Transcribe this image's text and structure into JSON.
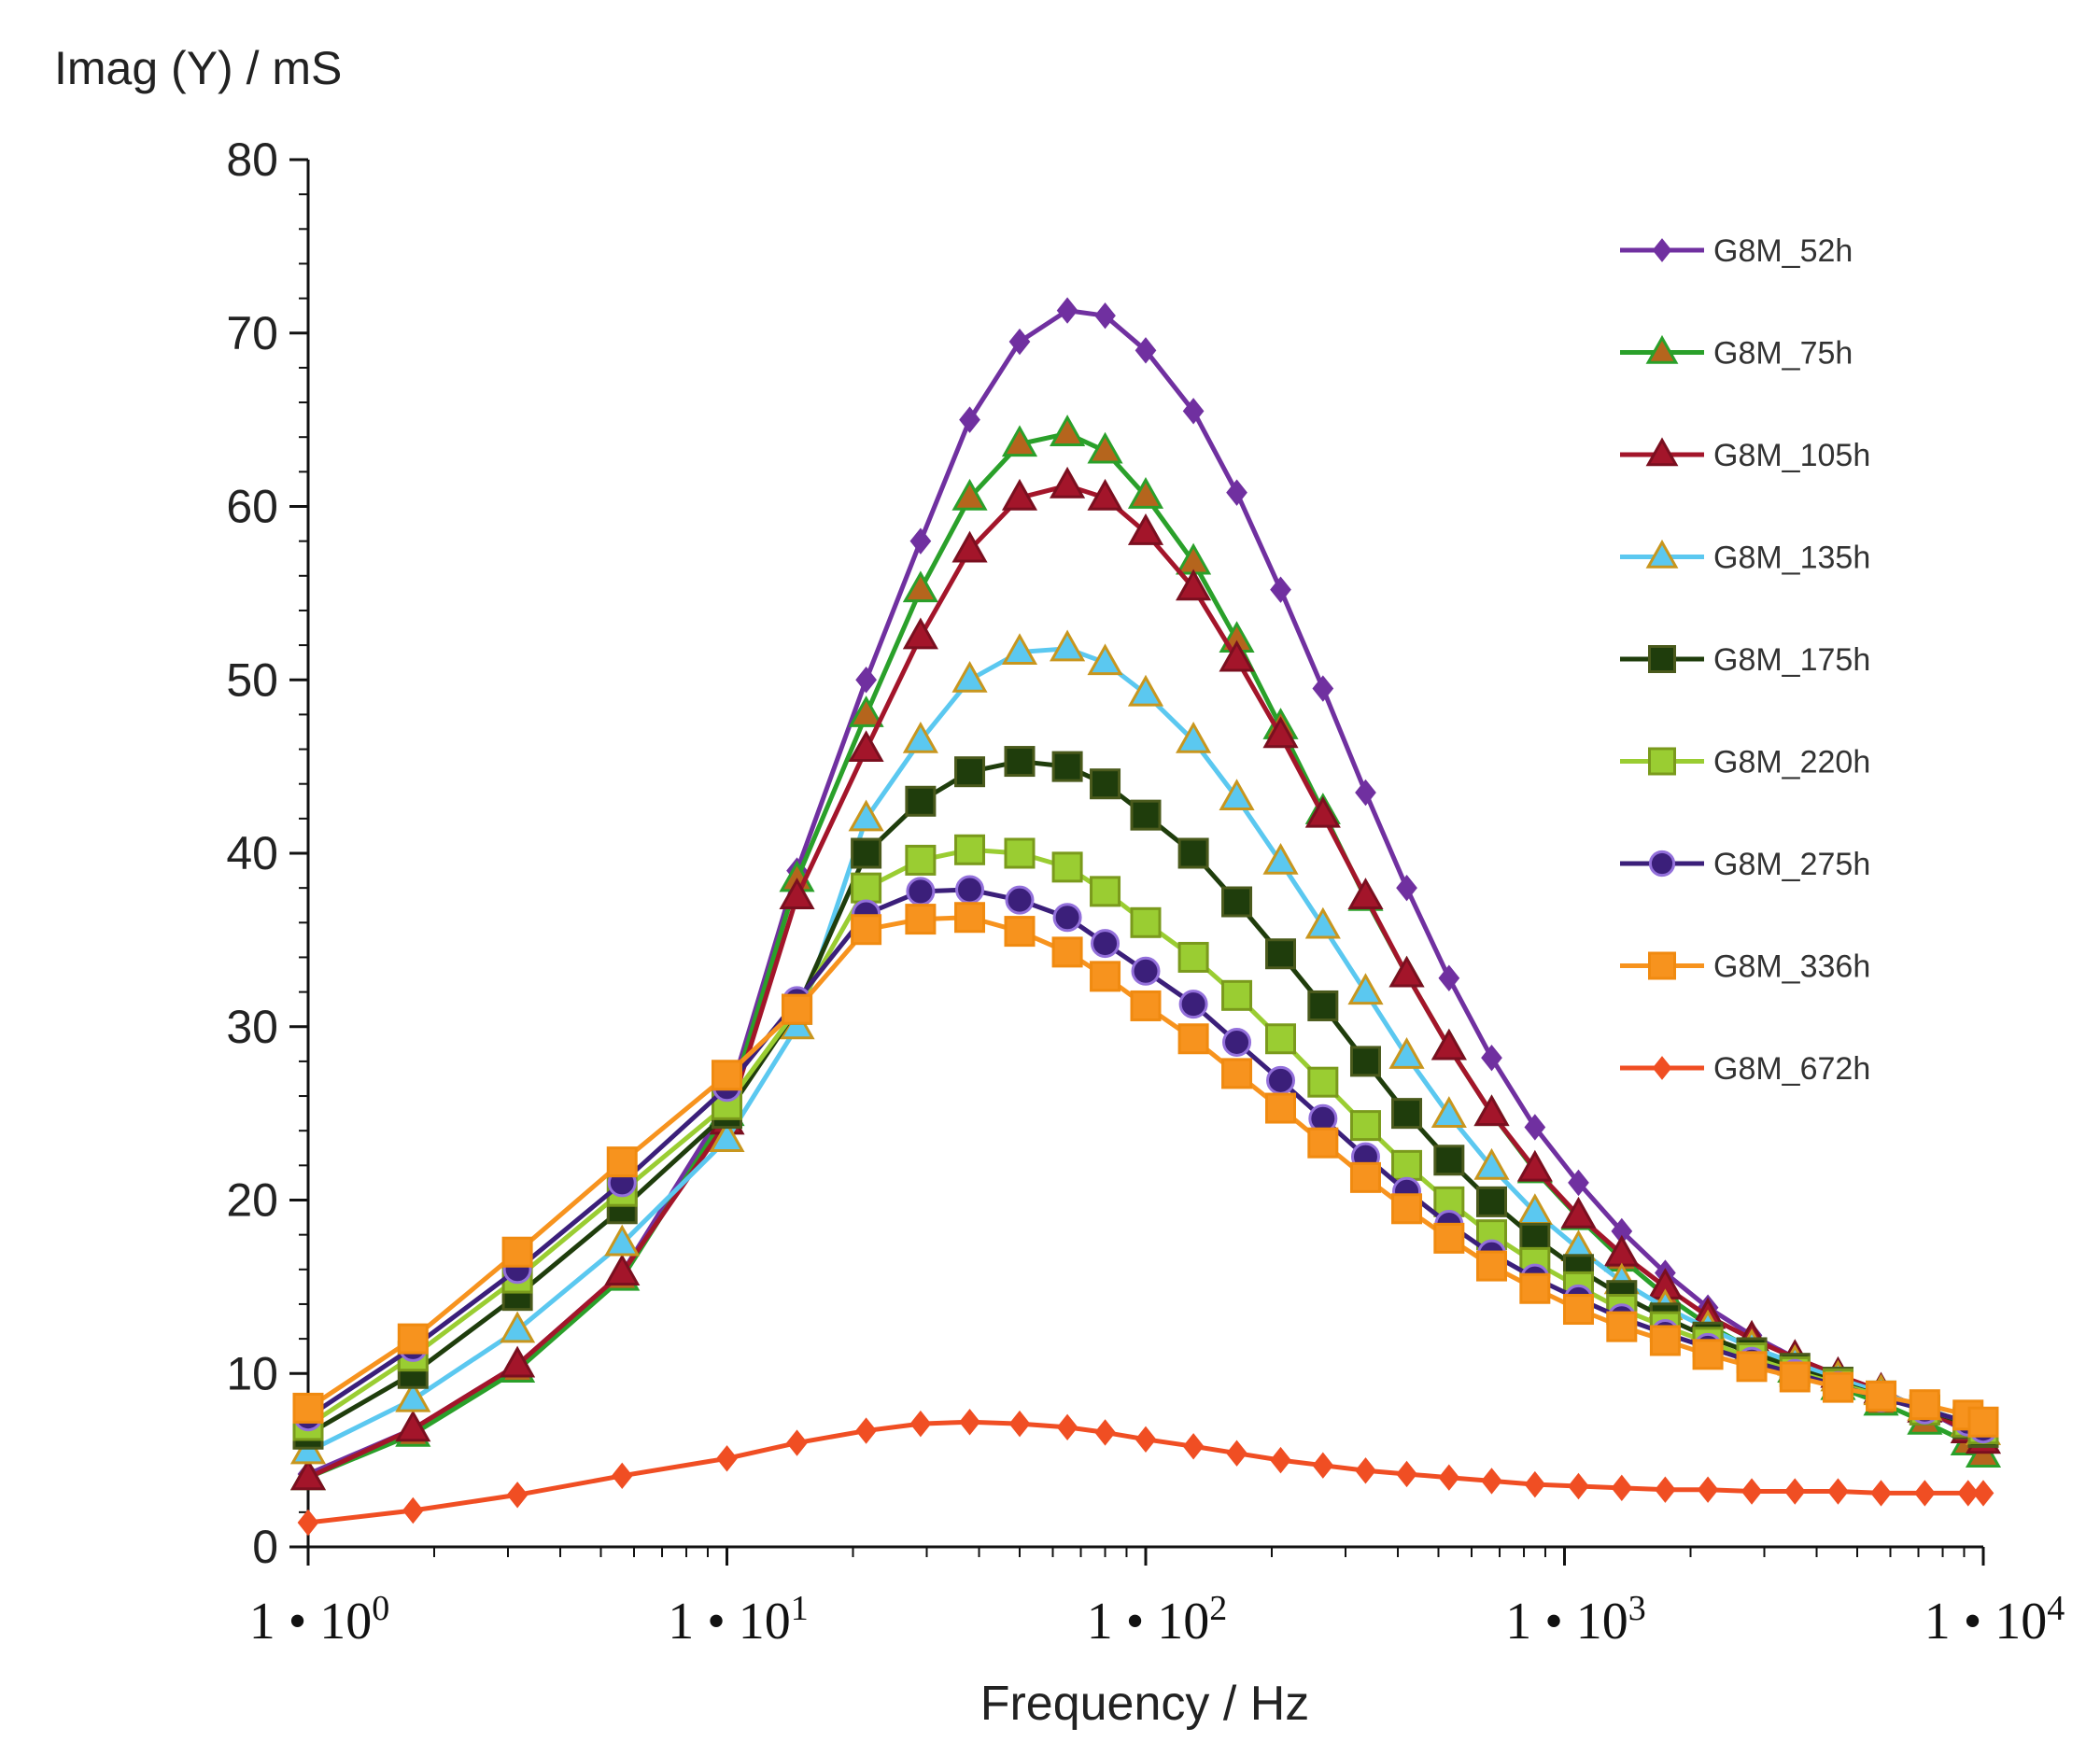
{
  "chart_data": {
    "type": "line",
    "ylabel": "Imag (Y) / mS",
    "xlabel": "Frequency / Hz",
    "x_scale": "log",
    "xlim": [
      1,
      10000
    ],
    "ylim": [
      0,
      80
    ],
    "y_ticks": [
      0,
      10,
      20,
      30,
      40,
      50,
      60,
      70,
      80
    ],
    "y_tick_labels": [
      "0",
      "10",
      "20",
      "30",
      "40",
      "50",
      "60",
      "70",
      "80"
    ],
    "x_ticks": [
      1,
      10,
      100,
      1000,
      10000
    ],
    "x_tick_labels": [
      {
        "base": "1 • 10",
        "exp": "0"
      },
      {
        "base": "1 • 10",
        "exp": "1"
      },
      {
        "base": "1 • 10",
        "exp": "2"
      },
      {
        "base": "1 • 10",
        "exp": "3"
      },
      {
        "base": "1 • 10",
        "exp": "4"
      }
    ],
    "legend_position": "top-right",
    "x": [
      1.0,
      1.78,
      3.16,
      5.62,
      10.0,
      14.7,
      21.5,
      31.6,
      46.4,
      68.1,
      100,
      147,
      215,
      316,
      464,
      681,
      1000,
      1470,
      2150,
      3160,
      4640,
      6810,
      10000
    ],
    "series": [
      {
        "name": "G8M_52h",
        "color": "#7030a0",
        "marker": "diamond",
        "marker_fill": "#7030a0",
        "x": [
          1.0,
          1.78,
          3.16,
          5.62,
          10.0,
          14.7,
          21.5,
          29.0,
          38.0,
          50.0,
          65.0,
          80.0,
          100,
          130,
          165,
          210,
          265,
          335,
          420,
          530,
          670,
          850,
          1080,
          1370,
          1740,
          2200,
          2800,
          3550,
          4500,
          5700,
          7250,
          9200,
          10000
        ],
        "values": [
          4.2,
          6.8,
          10.5,
          15.8,
          25.5,
          39.0,
          50.0,
          58.0,
          65.0,
          69.5,
          71.3,
          71.0,
          69.0,
          65.5,
          60.8,
          55.2,
          49.5,
          43.5,
          38.0,
          32.8,
          28.2,
          24.2,
          21.0,
          18.2,
          15.8,
          13.8,
          12.2,
          10.9,
          9.9,
          8.9,
          7.9,
          6.6,
          6.0
        ]
      },
      {
        "name": "G8M_75h",
        "color": "#2aa02a",
        "marker": "triangle",
        "marker_fill": "#b5651d",
        "x": [
          1.0,
          1.78,
          3.16,
          5.62,
          10.0,
          14.7,
          21.5,
          29.0,
          38.0,
          50.0,
          65.0,
          80.0,
          100,
          130,
          165,
          210,
          265,
          335,
          420,
          530,
          670,
          850,
          1080,
          1370,
          1740,
          2200,
          2800,
          3550,
          4500,
          5700,
          7250,
          9200,
          10000
        ],
        "values": [
          4.0,
          6.5,
          10.2,
          15.5,
          25.0,
          38.5,
          48.0,
          55.2,
          60.5,
          63.6,
          64.2,
          63.2,
          60.6,
          56.8,
          52.3,
          47.3,
          42.4,
          37.4,
          33.0,
          28.8,
          25.0,
          21.7,
          19.0,
          16.6,
          14.5,
          12.8,
          11.4,
          10.2,
          9.2,
          8.3,
          7.2,
          6.0,
          5.3
        ]
      },
      {
        "name": "G8M_105h",
        "color": "#a3152a",
        "marker": "triangle",
        "marker_fill": "#a3152a",
        "x": [
          1.0,
          1.78,
          3.16,
          5.62,
          10.0,
          14.7,
          21.5,
          29.0,
          38.0,
          50.0,
          65.0,
          80.0,
          100,
          130,
          165,
          210,
          265,
          335,
          420,
          530,
          670,
          850,
          1080,
          1370,
          1740,
          2200,
          2800,
          3550,
          4500,
          5700,
          7250,
          9200,
          10000
        ],
        "values": [
          4.0,
          6.8,
          10.5,
          15.8,
          24.5,
          37.5,
          46.0,
          52.5,
          57.5,
          60.5,
          61.2,
          60.5,
          58.5,
          55.3,
          51.2,
          46.8,
          42.2,
          37.5,
          33.0,
          28.8,
          25.0,
          21.8,
          19.1,
          16.9,
          15.0,
          13.3,
          12.0,
          10.9,
          9.9,
          9.0,
          7.9,
          6.7,
          6.1
        ]
      },
      {
        "name": "G8M_135h",
        "color": "#5bc8f0",
        "marker": "triangle",
        "marker_fill": "#5bc8f0",
        "x": [
          1.0,
          1.78,
          3.16,
          5.62,
          10.0,
          14.7,
          21.5,
          29.0,
          38.0,
          50.0,
          65.0,
          80.0,
          100,
          130,
          165,
          210,
          265,
          335,
          420,
          530,
          670,
          850,
          1080,
          1370,
          1740,
          2200,
          2800,
          3550,
          4500,
          5700,
          7250,
          9200,
          10000
        ],
        "values": [
          5.5,
          8.5,
          12.5,
          17.5,
          23.5,
          30.0,
          42.0,
          46.5,
          50.0,
          51.6,
          51.8,
          51.0,
          49.2,
          46.5,
          43.2,
          39.5,
          35.8,
          32.0,
          28.3,
          24.9,
          21.9,
          19.3,
          17.2,
          15.3,
          13.8,
          12.6,
          11.5,
          10.6,
          9.7,
          8.9,
          8.0,
          7.1,
          6.6
        ]
      },
      {
        "name": "G8M_175h",
        "color": "#1f3d0c",
        "marker": "square",
        "marker_fill": "#1f3d0c",
        "x": [
          1.0,
          1.78,
          3.16,
          5.62,
          10.0,
          14.7,
          21.5,
          29.0,
          38.0,
          50.0,
          65.0,
          80.0,
          100,
          130,
          165,
          210,
          265,
          335,
          420,
          530,
          670,
          850,
          1080,
          1370,
          1740,
          2200,
          2800,
          3550,
          4500,
          5700,
          7250,
          9200,
          10000
        ],
        "values": [
          6.5,
          10.0,
          14.5,
          19.5,
          25.0,
          31.0,
          40.0,
          43.0,
          44.7,
          45.3,
          45.0,
          44.0,
          42.2,
          40.0,
          37.2,
          34.2,
          31.2,
          28.0,
          25.0,
          22.3,
          19.9,
          17.8,
          16.0,
          14.5,
          13.2,
          12.1,
          11.2,
          10.3,
          9.5,
          8.7,
          7.9,
          7.1,
          6.6
        ]
      },
      {
        "name": "G8M_220h",
        "color": "#9acd32",
        "marker": "square",
        "marker_fill": "#9acd32",
        "x": [
          1.0,
          1.78,
          3.16,
          5.62,
          10.0,
          14.7,
          21.5,
          29.0,
          38.0,
          50.0,
          65.0,
          80.0,
          100,
          130,
          165,
          210,
          265,
          335,
          420,
          530,
          670,
          850,
          1080,
          1370,
          1740,
          2200,
          2800,
          3550,
          4500,
          5700,
          7250,
          9200,
          10000
        ],
        "values": [
          7.0,
          11.0,
          15.5,
          20.5,
          25.5,
          31.0,
          38.0,
          39.6,
          40.2,
          40.0,
          39.2,
          37.8,
          36.0,
          34.0,
          31.8,
          29.3,
          26.8,
          24.3,
          22.0,
          19.9,
          18.0,
          16.4,
          15.0,
          13.7,
          12.7,
          11.8,
          10.9,
          10.1,
          9.4,
          8.7,
          7.9,
          7.2,
          6.8
        ]
      },
      {
        "name": "G8M_275h",
        "color": "#3b1f7a",
        "marker": "circle",
        "marker_fill": "#3b1f7a",
        "x": [
          1.0,
          1.78,
          3.16,
          5.62,
          10.0,
          14.7,
          21.5,
          29.0,
          38.0,
          50.0,
          65.0,
          80.0,
          100,
          130,
          165,
          210,
          265,
          335,
          420,
          530,
          670,
          850,
          1080,
          1370,
          1740,
          2200,
          2800,
          3550,
          4500,
          5700,
          7250,
          9200,
          10000
        ],
        "values": [
          7.5,
          11.5,
          16.0,
          21.0,
          26.5,
          31.5,
          36.5,
          37.8,
          37.9,
          37.3,
          36.3,
          34.8,
          33.2,
          31.3,
          29.1,
          26.9,
          24.7,
          22.5,
          20.5,
          18.6,
          16.9,
          15.5,
          14.3,
          13.2,
          12.3,
          11.5,
          10.7,
          10.0,
          9.3,
          8.6,
          7.9,
          7.2,
          6.8
        ]
      },
      {
        "name": "G8M_336h",
        "color": "#f7931e",
        "marker": "square",
        "marker_fill": "#f7931e",
        "x": [
          1.0,
          1.78,
          3.16,
          5.62,
          10.0,
          14.7,
          21.5,
          29.0,
          38.0,
          50.0,
          65.0,
          80.0,
          100,
          130,
          165,
          210,
          265,
          335,
          420,
          530,
          670,
          850,
          1080,
          1370,
          1740,
          2200,
          2800,
          3550,
          4500,
          5700,
          7250,
          9200,
          10000
        ],
        "values": [
          8.0,
          12.0,
          17.0,
          22.2,
          27.2,
          31.0,
          35.6,
          36.2,
          36.3,
          35.5,
          34.3,
          32.9,
          31.2,
          29.3,
          27.3,
          25.3,
          23.3,
          21.3,
          19.5,
          17.8,
          16.2,
          14.9,
          13.7,
          12.7,
          11.9,
          11.1,
          10.4,
          9.8,
          9.2,
          8.7,
          8.2,
          7.6,
          7.2
        ]
      },
      {
        "name": "G8M_672h",
        "color": "#f04e23",
        "marker": "diamond",
        "marker_fill": "#f04e23",
        "x": [
          1.0,
          1.78,
          3.16,
          5.62,
          10.0,
          14.7,
          21.5,
          29.0,
          38.0,
          50.0,
          65.0,
          80.0,
          100,
          130,
          165,
          210,
          265,
          335,
          420,
          530,
          670,
          850,
          1080,
          1370,
          1740,
          2200,
          2800,
          3550,
          4500,
          5700,
          7250,
          9200,
          10000
        ],
        "values": [
          1.4,
          2.1,
          3.0,
          4.1,
          5.1,
          6.0,
          6.7,
          7.1,
          7.2,
          7.1,
          6.9,
          6.6,
          6.2,
          5.8,
          5.4,
          5.0,
          4.7,
          4.4,
          4.2,
          4.0,
          3.8,
          3.6,
          3.5,
          3.4,
          3.3,
          3.3,
          3.2,
          3.2,
          3.2,
          3.1,
          3.1,
          3.1,
          3.1
        ]
      }
    ]
  }
}
